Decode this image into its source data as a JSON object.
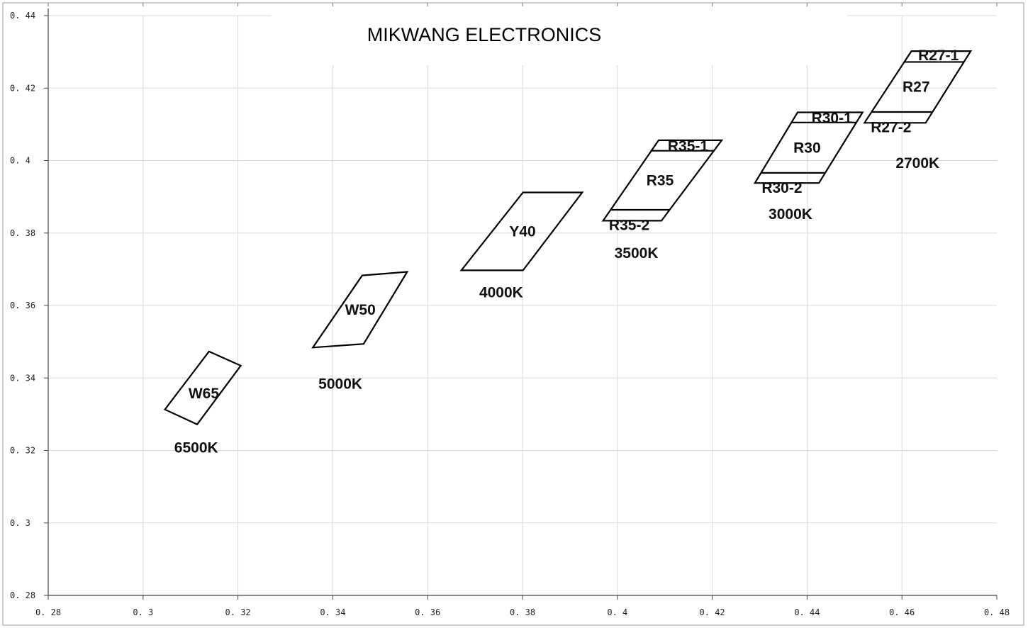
{
  "chart_data": {
    "type": "scatter",
    "title": "MIKWANG ELECTRONICS",
    "xlim": [
      0.28,
      0.48
    ],
    "ylim": [
      0.28,
      0.44
    ],
    "x_ticks": [
      0.28,
      0.3,
      0.32,
      0.34,
      0.36,
      0.38,
      0.4,
      0.42,
      0.44,
      0.46,
      0.48
    ],
    "y_ticks": [
      0.28,
      0.3,
      0.32,
      0.34,
      0.36,
      0.38,
      0.4,
      0.42,
      0.44
    ],
    "x_tick_labels": [
      "0. 28",
      "0. 3",
      "0. 32",
      "0. 34",
      "0. 36",
      "0. 38",
      "0. 4",
      "0. 42",
      "0. 44",
      "0. 46",
      "0. 48"
    ],
    "y_tick_labels": [
      "0. 28",
      "0. 3",
      "0. 32",
      "0. 34",
      "0. 36",
      "0. 38",
      "0. 4",
      "0. 42",
      "0. 44"
    ],
    "grid": true,
    "bins": [
      {
        "name": "W65",
        "points": [
          [
            0.3046,
            0.3313
          ],
          [
            0.3139,
            0.3473
          ],
          [
            0.3206,
            0.3434
          ],
          [
            0.3114,
            0.3272
          ]
        ],
        "label_at": [
          0.3128,
          0.3357
        ]
      },
      {
        "name": "W50",
        "points": [
          [
            0.3358,
            0.3484
          ],
          [
            0.3462,
            0.3683
          ],
          [
            0.3557,
            0.3693
          ],
          [
            0.3465,
            0.3494
          ]
        ],
        "label_at": [
          0.3458,
          0.3588
        ]
      },
      {
        "name": "Y40",
        "points": [
          [
            0.3671,
            0.3697
          ],
          [
            0.3801,
            0.3912
          ],
          [
            0.3926,
            0.3912
          ],
          [
            0.3801,
            0.3697
          ]
        ],
        "label_at": [
          0.38,
          0.3804
        ]
      },
      {
        "name": "R35",
        "points": [
          [
            0.397,
            0.3834
          ],
          [
            0.4087,
            0.4056
          ],
          [
            0.422,
            0.4056
          ],
          [
            0.4093,
            0.3834
          ]
        ],
        "label_at": [
          0.409,
          0.3945
        ]
      },
      {
        "name": "R30",
        "points": [
          [
            0.429,
            0.3938
          ],
          [
            0.438,
            0.4133
          ],
          [
            0.4517,
            0.4133
          ],
          [
            0.4425,
            0.3938
          ]
        ],
        "label_at": [
          0.44,
          0.4035
        ]
      },
      {
        "name": "R27",
        "points": [
          [
            0.4521,
            0.4104
          ],
          [
            0.462,
            0.4302
          ],
          [
            0.4745,
            0.4302
          ],
          [
            0.465,
            0.4104
          ]
        ],
        "label_at": [
          0.463,
          0.4203
        ]
      }
    ],
    "sub_bin_lines": [
      {
        "name": "R35-1",
        "points": [
          [
            0.407,
            0.4027
          ],
          [
            0.4203,
            0.4027
          ]
        ]
      },
      {
        "name": "R35-2",
        "points": [
          [
            0.3986,
            0.3864
          ],
          [
            0.411,
            0.3864
          ]
        ]
      },
      {
        "name": "R30-1",
        "points": [
          [
            0.4367,
            0.4105
          ],
          [
            0.4504,
            0.4105
          ]
        ]
      },
      {
        "name": "R30-2",
        "points": [
          [
            0.4303,
            0.3966
          ],
          [
            0.4438,
            0.3966
          ]
        ]
      },
      {
        "name": "R27-1",
        "points": [
          [
            0.4605,
            0.4272
          ],
          [
            0.473,
            0.4272
          ]
        ]
      },
      {
        "name": "R27-2",
        "points": [
          [
            0.4536,
            0.4134
          ],
          [
            0.4665,
            0.4134
          ]
        ]
      }
    ],
    "sub_bin_labels": [
      {
        "text": "R35-1",
        "at": [
          0.4149,
          0.404
        ]
      },
      {
        "text": "R35-2",
        "at": [
          0.4025,
          0.3822
        ]
      },
      {
        "text": "R30-1",
        "at": [
          0.4452,
          0.4117
        ]
      },
      {
        "text": "R30-2",
        "at": [
          0.4347,
          0.3925
        ]
      },
      {
        "text": "R27-1",
        "at": [
          0.4677,
          0.429
        ]
      },
      {
        "text": "R27-2",
        "at": [
          0.4577,
          0.4092
        ]
      }
    ],
    "cct_labels": [
      {
        "text": "6500K",
        "at": [
          0.3112,
          0.3208
        ]
      },
      {
        "text": "5000K",
        "at": [
          0.3416,
          0.3384
        ]
      },
      {
        "text": "4000K",
        "at": [
          0.3755,
          0.3636
        ]
      },
      {
        "text": "3500K",
        "at": [
          0.404,
          0.3745
        ]
      },
      {
        "text": "3000K",
        "at": [
          0.4365,
          0.3852
        ]
      },
      {
        "text": "2700K",
        "at": [
          0.4633,
          0.3993
        ]
      }
    ]
  }
}
